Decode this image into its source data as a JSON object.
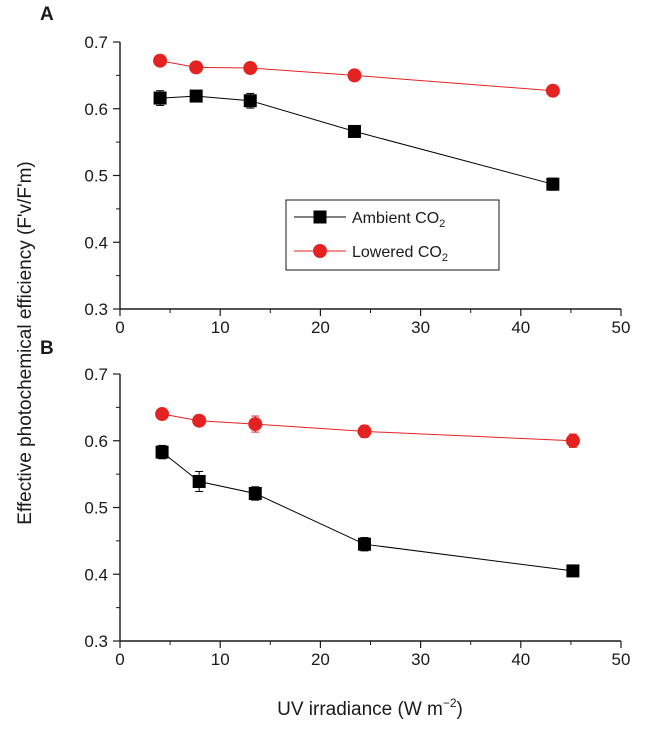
{
  "figure": {
    "ylabel": "Effective photochemical efficiency (F'v/F'm)",
    "xlabel_main": "UV irradiance (W m",
    "xlabel_sup": "−2",
    "xlabel_end": ")"
  },
  "legend": {
    "ambient_main": "Ambient CO",
    "ambient_sub": "2",
    "lowered_main": "Lowered CO",
    "lowered_sub": "2"
  },
  "colors": {
    "ambient": "#000000",
    "lowered": "#e52222",
    "axis": "#1a1a1a"
  },
  "chart_data": [
    {
      "type": "line",
      "panel_label": "A",
      "xlabel": "",
      "ylabel": "Effective photochemical efficiency (F'v/F'm)",
      "xlim": [
        0,
        50
      ],
      "ylim": [
        0.3,
        0.7
      ],
      "xticks": [
        "0",
        "10",
        "20",
        "30",
        "40",
        "50"
      ],
      "yticks": [
        "0.3",
        "0.4",
        "0.5",
        "0.6",
        "0.7"
      ],
      "legend": "center",
      "series": [
        {
          "name": "Ambient CO2",
          "marker": "square",
          "x": [
            4,
            7.6,
            13,
            23.4,
            43.2
          ],
          "y": [
            0.616,
            0.619,
            0.612,
            0.566,
            0.487
          ],
          "err": [
            0.011,
            0.008,
            0.011,
            0.008,
            0.009
          ]
        },
        {
          "name": "Lowered CO2",
          "marker": "circle",
          "x": [
            4,
            7.6,
            13,
            23.4,
            43.2
          ],
          "y": [
            0.672,
            0.662,
            0.661,
            0.65,
            0.627
          ],
          "err": [
            0.008,
            0.006,
            0.008,
            0.006,
            0.008
          ]
        }
      ]
    },
    {
      "type": "line",
      "panel_label": "B",
      "xlabel": "UV irradiance (W m-2)",
      "ylabel": "Effective photochemical efficiency (F'v/F'm)",
      "xlim": [
        0,
        50
      ],
      "ylim": [
        0.3,
        0.7
      ],
      "xticks": [
        "0",
        "10",
        "20",
        "30",
        "40",
        "50"
      ],
      "yticks": [
        "0.3",
        "0.4",
        "0.5",
        "0.6",
        "0.7"
      ],
      "legend": "none",
      "series": [
        {
          "name": "Ambient CO2",
          "marker": "square",
          "x": [
            4.2,
            7.9,
            13.5,
            24.4,
            45.2
          ],
          "y": [
            0.583,
            0.539,
            0.521,
            0.445,
            0.405
          ],
          "err": [
            0.01,
            0.015,
            0.01,
            0.01,
            0.008
          ]
        },
        {
          "name": "Lowered CO2",
          "marker": "circle",
          "x": [
            4.2,
            7.9,
            13.5,
            24.4,
            45.2
          ],
          "y": [
            0.64,
            0.63,
            0.625,
            0.614,
            0.6
          ],
          "err": [
            0.006,
            0.008,
            0.012,
            0.009,
            0.01
          ]
        }
      ]
    }
  ]
}
